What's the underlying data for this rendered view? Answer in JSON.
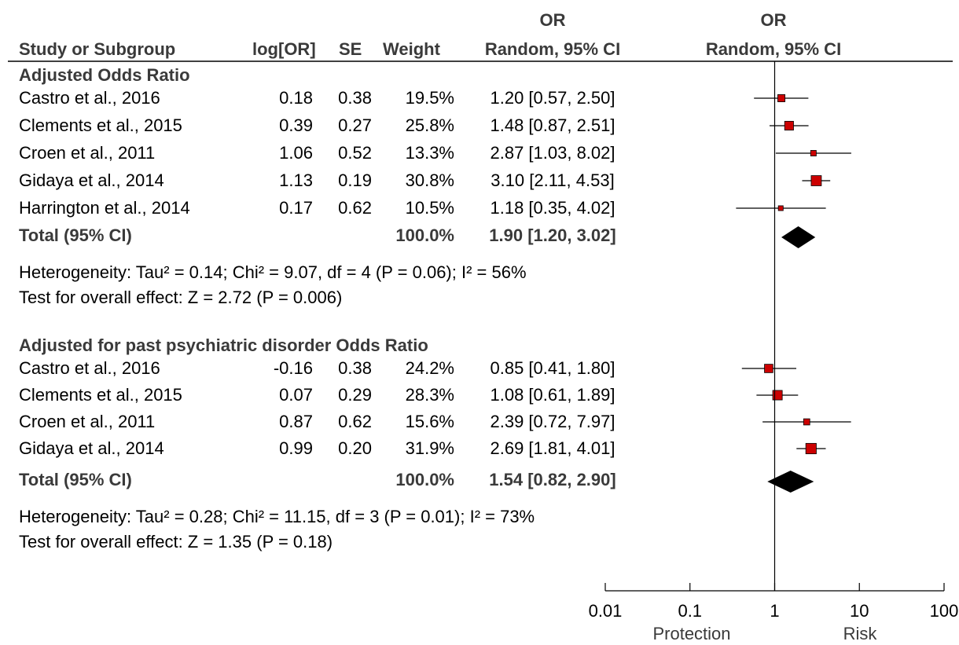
{
  "chart_data": {
    "type": "forest",
    "columns": {
      "study": "Study or Subgroup",
      "logor": "log[OR]",
      "se": "SE",
      "weight": "Weight",
      "or_top": "OR",
      "or_bottom": "Random, 95% CI",
      "plot_top": "OR",
      "plot_bottom": "Random, 95% CI"
    },
    "subgroups": [
      {
        "title": "Adjusted Odds Ratio",
        "studies": [
          {
            "name": "Castro et al., 2016",
            "logor": "0.18",
            "se": "0.38",
            "weight": "19.5%",
            "ci_text": "1.20 [0.57, 2.50]",
            "or": 1.2,
            "lo": 0.57,
            "hi": 2.5,
            "w": 19.5
          },
          {
            "name": "Clements et al., 2015",
            "logor": "0.39",
            "se": "0.27",
            "weight": "25.8%",
            "ci_text": "1.48 [0.87, 2.51]",
            "or": 1.48,
            "lo": 0.87,
            "hi": 2.51,
            "w": 25.8
          },
          {
            "name": "Croen et al., 2011",
            "logor": "1.06",
            "se": "0.52",
            "weight": "13.3%",
            "ci_text": "2.87 [1.03, 8.02]",
            "or": 2.87,
            "lo": 1.03,
            "hi": 8.02,
            "w": 13.3
          },
          {
            "name": "Gidaya et al., 2014",
            "logor": "1.13",
            "se": "0.19",
            "weight": "30.8%",
            "ci_text": "3.10 [2.11, 4.53]",
            "or": 3.1,
            "lo": 2.11,
            "hi": 4.53,
            "w": 30.8
          },
          {
            "name": "Harrington et al., 2014",
            "logor": "0.17",
            "se": "0.62",
            "weight": "10.5%",
            "ci_text": "1.18 [0.35, 4.02]",
            "or": 1.18,
            "lo": 0.35,
            "hi": 4.02,
            "w": 10.5
          }
        ],
        "total": {
          "label": "Total (95% CI)",
          "weight": "100.0%",
          "ci_text": "1.90 [1.20, 3.02]",
          "or": 1.9,
          "lo": 1.2,
          "hi": 3.02
        },
        "heterogeneity": "Heterogeneity: Tau² = 0.14; Chi² = 9.07, df = 4 (P = 0.06); I² = 56%",
        "overall": "Test for overall effect: Z = 2.72 (P = 0.006)"
      },
      {
        "title": "Adjusted for past psychiatric disorder Odds Ratio",
        "studies": [
          {
            "name": "Castro et al., 2016",
            "logor": "-0.16",
            "se": "0.38",
            "weight": "24.2%",
            "ci_text": "0.85 [0.41, 1.80]",
            "or": 0.85,
            "lo": 0.41,
            "hi": 1.8,
            "w": 24.2
          },
          {
            "name": "Clements et al., 2015",
            "logor": "0.07",
            "se": "0.29",
            "weight": "28.3%",
            "ci_text": "1.08 [0.61, 1.89]",
            "or": 1.08,
            "lo": 0.61,
            "hi": 1.89,
            "w": 28.3
          },
          {
            "name": "Croen et al., 2011",
            "logor": "0.87",
            "se": "0.62",
            "weight": "15.6%",
            "ci_text": "2.39 [0.72, 7.97]",
            "or": 2.39,
            "lo": 0.72,
            "hi": 7.97,
            "w": 15.6
          },
          {
            "name": "Gidaya et al., 2014",
            "logor": "0.99",
            "se": "0.20",
            "weight": "31.9%",
            "ci_text": "2.69 [1.81, 4.01]",
            "or": 2.69,
            "lo": 1.81,
            "hi": 4.01,
            "w": 31.9
          }
        ],
        "total": {
          "label": "Total (95% CI)",
          "weight": "100.0%",
          "ci_text": "1.54 [0.82, 2.90]",
          "or": 1.54,
          "lo": 0.82,
          "hi": 2.9
        },
        "heterogeneity": "Heterogeneity: Tau² = 0.28; Chi² = 11.15, df = 3 (P = 0.01); I² = 73%",
        "overall": "Test for overall effect: Z = 1.35 (P = 0.18)"
      }
    ],
    "xaxis": {
      "scale": "log",
      "range": [
        0.01,
        100
      ],
      "ticks": [
        {
          "value": 0.01,
          "label": "0.01"
        },
        {
          "value": 0.1,
          "label": "0.1"
        },
        {
          "value": 1,
          "label": "1"
        },
        {
          "value": 10,
          "label": "10"
        },
        {
          "value": 100,
          "label": "100"
        }
      ],
      "left_label": "Protection",
      "right_label": "Risk"
    },
    "colors": {
      "marker": "#cc0000",
      "line": "#000000",
      "text": "#000000",
      "header": "#3a3a3a"
    }
  }
}
